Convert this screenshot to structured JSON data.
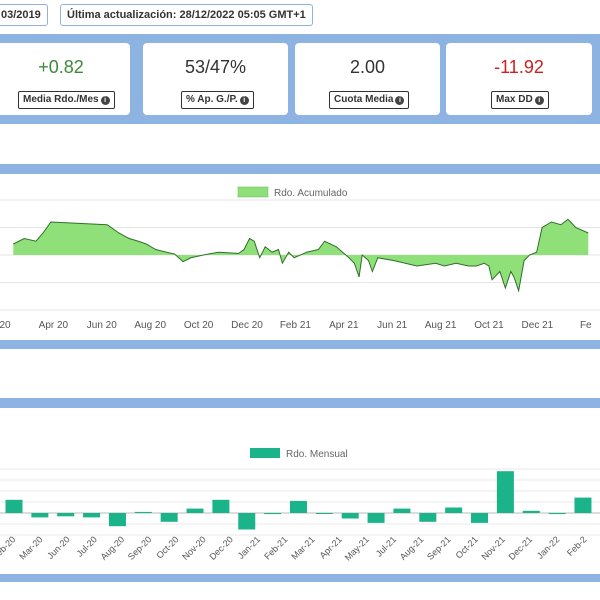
{
  "header": {
    "start_date_fragment": "03/2019",
    "last_update": "Última actualización: 28/12/2022 05:05 GMT+1"
  },
  "stats": [
    {
      "value": "+0.82",
      "label": "Media Rdo./Mes",
      "color": "#3a8a3a"
    },
    {
      "value": "53/47%",
      "label": "% Ap. G./P.",
      "color": "#333333"
    },
    {
      "value": "2.00",
      "label": "Cuota Media",
      "color": "#333333"
    },
    {
      "value": "-11.92",
      "label": "Max DD",
      "color": "#cc2222"
    }
  ],
  "icons": {
    "info": "info-circle-icon"
  },
  "colors": {
    "panel_band": "#8db3e2",
    "cumulative_fill": "#90e07a",
    "monthly_bar": "#1bb38a"
  },
  "chart_data": [
    {
      "type": "area",
      "legend": "Rdo. Acumulado",
      "legend_placement": "top-center",
      "grid": true,
      "x_tick_labels": [
        "20",
        "Apr 20",
        "Jun 20",
        "Aug 20",
        "Oct 20",
        "Dec 20",
        "Feb 21",
        "Apr 21",
        "Jun 21",
        "Aug 21",
        "Oct 21",
        "Dec 21",
        "Fe"
      ],
      "series": [
        {
          "name": "Rdo. Acumulado",
          "x": [
            "2020-02-01",
            "2020-02-15",
            "2020-03-01",
            "2020-03-10",
            "2020-03-20",
            "2020-05-31",
            "2020-06-15",
            "2020-06-28",
            "2020-07-10",
            "2020-07-20",
            "2020-08-01",
            "2020-08-15",
            "2020-08-25",
            "2020-09-05",
            "2020-09-15",
            "2020-10-01",
            "2020-10-20",
            "2020-11-15",
            "2020-11-22",
            "2020-11-29",
            "2020-12-05",
            "2020-12-12",
            "2020-12-19",
            "2020-12-28",
            "2021-01-05",
            "2021-01-10",
            "2021-01-18",
            "2021-01-25",
            "2021-02-10",
            "2021-02-25",
            "2021-03-05",
            "2021-03-20",
            "2021-04-05",
            "2021-04-12",
            "2021-04-18",
            "2021-04-22",
            "2021-04-30",
            "2021-05-05",
            "2021-05-12",
            "2021-06-01",
            "2021-07-01",
            "2021-07-25",
            "2021-08-05",
            "2021-08-20",
            "2021-09-05",
            "2021-09-15",
            "2021-09-25",
            "2021-10-01",
            "2021-10-05",
            "2021-10-15",
            "2021-10-22",
            "2021-10-29",
            "2021-11-02",
            "2021-11-08",
            "2021-11-15",
            "2021-11-22",
            "2021-12-01",
            "2021-12-08",
            "2021-12-20",
            "2022-01-01",
            "2022-01-10",
            "2022-01-20",
            "2022-02-05"
          ],
          "y": [
            2.0,
            3.0,
            2.5,
            4.0,
            6.0,
            5.5,
            4.0,
            3.0,
            2.5,
            2.0,
            1.0,
            0.5,
            0.2,
            -1.2,
            -0.5,
            0.0,
            0.5,
            0.3,
            1.0,
            3.0,
            2.5,
            -0.5,
            1.5,
            0.5,
            1.0,
            -1.5,
            0.5,
            -0.5,
            0.5,
            1.0,
            2.5,
            1.5,
            -0.5,
            -1.5,
            -4.0,
            0.0,
            -1.0,
            -3.0,
            -0.5,
            -1.0,
            -2.0,
            -1.5,
            -2.0,
            -1.5,
            -2.0,
            -2.0,
            -1.5,
            -2.0,
            -4.5,
            -3.0,
            -6.0,
            -3.0,
            -4.0,
            -6.5,
            -1.0,
            0.0,
            0.5,
            5.0,
            6.0,
            5.5,
            6.5,
            5.0,
            4.0
          ]
        }
      ]
    },
    {
      "type": "bar",
      "legend": "Rdo. Mensual",
      "legend_placement": "top-center",
      "grid": true,
      "categories": [
        "Feb-20",
        "Mar-20",
        "Apr-20",
        "Jun-20",
        "Jul-20",
        "Aug-20",
        "Sep-20",
        "Oct-20",
        "Nov-20",
        "Dec-20",
        "Jan-21",
        "Feb-21",
        "Mar-21",
        "Apr-21",
        "May-21",
        "Jun-21",
        "Jul-21",
        "Aug-21",
        "Sep-21",
        "Oct-21",
        "Nov-21",
        "Dec-21",
        "Jan-22",
        "Feb-22"
      ],
      "x_tick_labels": [
        "Feb-20",
        "Mar-20",
        "Jun-20",
        "Jul-20",
        "Aug-20",
        "Sep-20",
        "Oct-20",
        "Nov-20",
        "Dec-20",
        "Jan-21",
        "Feb-21",
        "Mar-21",
        "Apr-21",
        "May-21",
        "Jul-21",
        "Aug-21",
        "Sep-21",
        "Oct-21",
        "Nov-21",
        "Dec-21",
        "Jan-22",
        "Feb-2"
      ],
      "values": [
        1.2,
        -0.4,
        -0.3,
        -0.4,
        -1.2,
        0.1,
        -0.8,
        0.4,
        1.2,
        -1.5,
        -0.1,
        1.1,
        0.0,
        -0.5,
        -0.9,
        0.4,
        -0.8,
        0.5,
        -0.9,
        3.8,
        0.2,
        -0.1,
        1.4,
        0.0
      ]
    }
  ]
}
